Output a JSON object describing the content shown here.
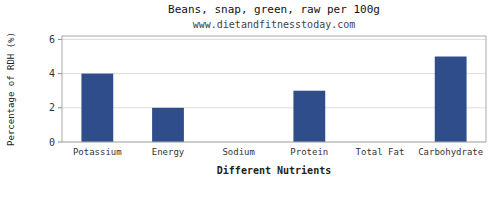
{
  "chart_data": {
    "type": "bar",
    "title": "Beans, snap, green, raw per 100g",
    "subtitle": "www.dietandfitnesstoday.com",
    "xlabel": "Different Nutrients",
    "ylabel": "Percentage of RDH (%)",
    "categories": [
      "Potassium",
      "Energy",
      "Sodium",
      "Protein",
      "Total Fat",
      "Carbohydrate"
    ],
    "values": [
      4.0,
      2.0,
      0.0,
      3.0,
      0.0,
      5.0
    ],
    "color": "#2e4d8a",
    "ylim": [
      0,
      6.2
    ],
    "yticks": [
      0,
      2,
      4,
      6
    ],
    "grid": true
  }
}
